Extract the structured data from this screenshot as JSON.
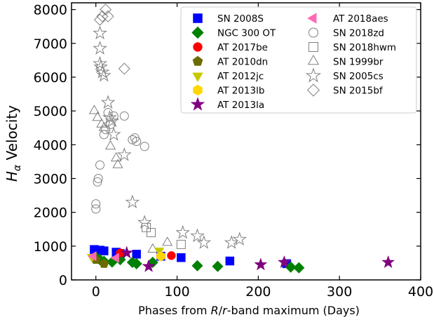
{
  "chart_data": {
    "type": "scatter",
    "xlabel_parts": [
      "Phases from ",
      "R",
      "/",
      "r",
      "-band maximum (Days)"
    ],
    "ylabel_parts": [
      "H",
      "α",
      " Velocity"
    ],
    "xlim": [
      -30,
      400
    ],
    "ylim": [
      0,
      8200
    ],
    "xticks": [
      0,
      100,
      200,
      300,
      400
    ],
    "yticks": [
      0,
      1000,
      2000,
      3000,
      4000,
      5000,
      6000,
      7000,
      8000
    ],
    "legend_position": "top-right",
    "series": [
      {
        "name": "SN 2008S",
        "marker": "square",
        "color": "#0000ff",
        "filled": true,
        "points": [
          [
            -2,
            900
          ],
          [
            5,
            880
          ],
          [
            10,
            860
          ],
          [
            25,
            820
          ],
          [
            30,
            780
          ],
          [
            50,
            760
          ],
          [
            80,
            700
          ],
          [
            105,
            660
          ],
          [
            165,
            560
          ],
          [
            235,
            480
          ]
        ]
      },
      {
        "name": "NGC 300 OT",
        "marker": "diamond",
        "color": "#008000",
        "filled": true,
        "points": [
          [
            0,
            680
          ],
          [
            5,
            600
          ],
          [
            10,
            550
          ],
          [
            20,
            530
          ],
          [
            30,
            600
          ],
          [
            45,
            520
          ],
          [
            50,
            480
          ],
          [
            70,
            520
          ],
          [
            125,
            420
          ],
          [
            150,
            400
          ],
          [
            240,
            380
          ],
          [
            250,
            360
          ]
        ]
      },
      {
        "name": "AT 2017be",
        "marker": "circle",
        "color": "#ff0000",
        "filled": true,
        "points": [
          [
            30,
            800
          ],
          [
            93,
            720
          ]
        ]
      },
      {
        "name": "AT 2010dn",
        "marker": "pentagon",
        "color": "#6b6b00",
        "filled": true,
        "points": [
          [
            0,
            600
          ],
          [
            10,
            480
          ]
        ]
      },
      {
        "name": "AT 2012jc",
        "marker": "triangle-down",
        "color": "#c8c800",
        "filled": true,
        "points": [
          [
            -5,
            680
          ],
          [
            78,
            870
          ]
        ]
      },
      {
        "name": "AT 2013lb",
        "marker": "hexagon",
        "color": "#ffd700",
        "filled": true,
        "points": [
          [
            80,
            700
          ]
        ]
      },
      {
        "name": "AT 2013la",
        "marker": "star",
        "color": "#800080",
        "filled": true,
        "points": [
          [
            38,
            800
          ],
          [
            65,
            400
          ],
          [
            203,
            450
          ],
          [
            232,
            520
          ],
          [
            360,
            520
          ]
        ]
      },
      {
        "name": "AT 2018aes",
        "marker": "triangle-left",
        "color": "#ff69b4",
        "filled": true,
        "points": [
          [
            -3,
            700
          ],
          [
            25,
            650
          ]
        ]
      },
      {
        "name": "SN 2018zd",
        "marker": "circle",
        "color": "#808080",
        "filled": false,
        "points": [
          [
            0,
            2100
          ],
          [
            0,
            2250
          ],
          [
            2,
            2900
          ],
          [
            3,
            3000
          ],
          [
            5,
            3400
          ],
          [
            10,
            4300
          ],
          [
            12,
            4450
          ],
          [
            15,
            4950
          ],
          [
            18,
            4600
          ],
          [
            22,
            4850
          ],
          [
            35,
            4850
          ],
          [
            45,
            4150
          ],
          [
            48,
            4200
          ],
          [
            50,
            4100
          ],
          [
            60,
            3950
          ]
        ]
      },
      {
        "name": "SN 2018hwm",
        "marker": "square",
        "color": "#808080",
        "filled": false,
        "points": [
          [
            62,
            1550
          ],
          [
            68,
            1400
          ],
          [
            105,
            1050
          ]
        ]
      },
      {
        "name": "SN 1999br",
        "marker": "triangle-up",
        "color": "#808080",
        "filled": false,
        "points": [
          [
            -2,
            5000
          ],
          [
            2,
            4800
          ],
          [
            7,
            4600
          ],
          [
            10,
            4500
          ],
          [
            18,
            3950
          ],
          [
            25,
            3600
          ],
          [
            27,
            3400
          ],
          [
            88,
            1100
          ],
          [
            70,
            900
          ]
        ]
      },
      {
        "name": "SN 2005cs",
        "marker": "star",
        "color": "#808080",
        "filled": false,
        "points": [
          [
            5,
            7300
          ],
          [
            5,
            6850
          ],
          [
            5,
            6400
          ],
          [
            6,
            6300
          ],
          [
            8,
            6150
          ],
          [
            10,
            6050
          ],
          [
            15,
            5250
          ],
          [
            17,
            4800
          ],
          [
            20,
            4700
          ],
          [
            22,
            4300
          ],
          [
            35,
            3700
          ],
          [
            45,
            2300
          ],
          [
            60,
            1700
          ],
          [
            107,
            1400
          ],
          [
            125,
            1300
          ],
          [
            133,
            1100
          ],
          [
            167,
            1100
          ],
          [
            177,
            1200
          ]
        ]
      },
      {
        "name": "SN 2015bf",
        "marker": "diamond",
        "color": "#808080",
        "filled": false,
        "points": [
          [
            5,
            7700
          ],
          [
            8,
            7800
          ],
          [
            12,
            8000
          ],
          [
            15,
            7800
          ],
          [
            35,
            6250
          ]
        ]
      }
    ]
  }
}
